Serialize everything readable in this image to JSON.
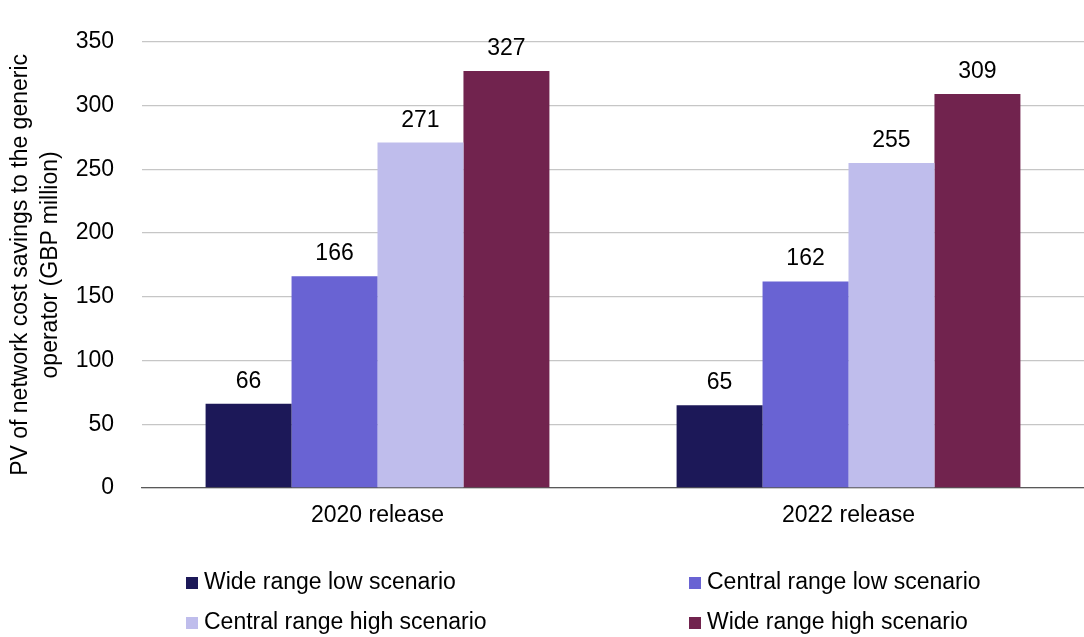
{
  "chart_data": {
    "type": "bar",
    "ylabel": "PV of network cost savings to the generic operator (GBP million)",
    "categories": [
      "2020 release",
      "2022 release"
    ],
    "series": [
      {
        "name": "Wide range low scenario",
        "color": "#1c1858",
        "values": [
          66,
          65
        ]
      },
      {
        "name": "Central range low scenario",
        "color": "#6963d3",
        "values": [
          166,
          162
        ]
      },
      {
        "name": "Central range high scenario",
        "color": "#bfbdec",
        "values": [
          271,
          255
        ]
      },
      {
        "name": "Wide range high scenario",
        "color": "#71234e",
        "values": [
          327,
          309
        ]
      }
    ],
    "ylim": [
      0,
      350
    ],
    "yticks": [
      0,
      50,
      100,
      150,
      200,
      250,
      300,
      350
    ],
    "grid": "y",
    "legend": "bottom",
    "data_labels": true
  }
}
